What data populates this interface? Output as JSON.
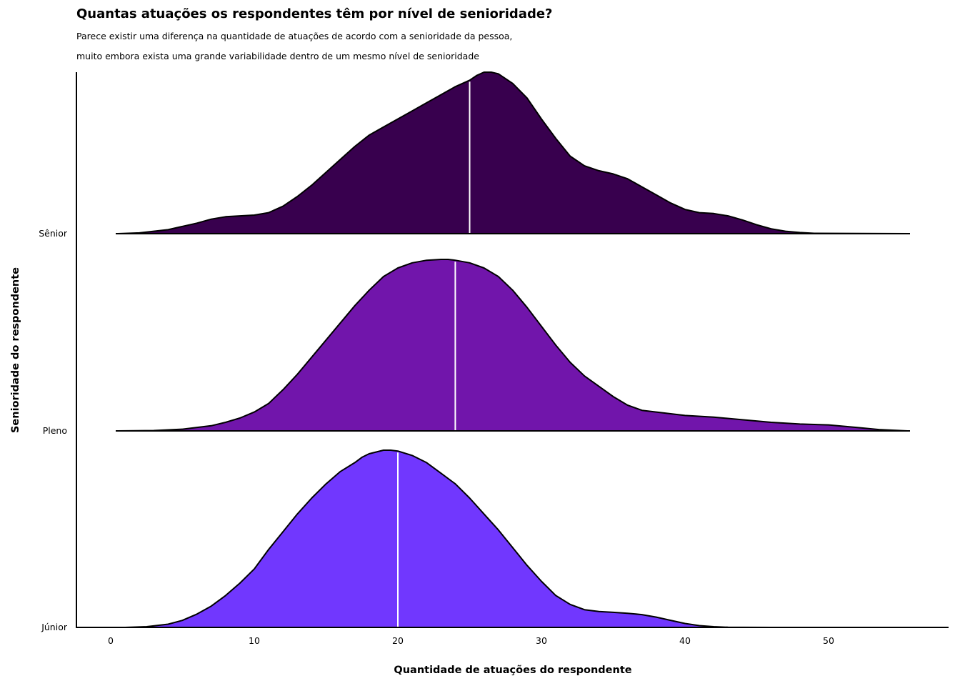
{
  "chart_data": {
    "type": "area",
    "subtype": "ridgeline-density",
    "title": "Quantas atuações os respondentes têm por nível de senioridade?",
    "subtitle_lines": [
      "Parece existir uma diferença na quantidade de atuações de acordo com a senioridade da pessoa,",
      "muito embora exista uma grande variabilidade dentro de um mesmo nível de senioridade"
    ],
    "xlabel": "Quantidade de atuações do respondente",
    "ylabel": "Senioridade do respondente",
    "xlim": [
      -2.5,
      58.5
    ],
    "xticks": [
      0,
      10,
      20,
      30,
      40,
      50
    ],
    "grid": false,
    "legend": "none",
    "categories": [
      "Júnior",
      "Pleno",
      "Sênior"
    ],
    "series": [
      {
        "name": "Júnior",
        "color": "#7137fe",
        "median": 20,
        "density_x": [
          1,
          2.5,
          4,
          5,
          6,
          7,
          8,
          9,
          10,
          11,
          12,
          13,
          14,
          15,
          16,
          17,
          17.5,
          18,
          19,
          19.5,
          20,
          21,
          22,
          23,
          24,
          25,
          26,
          27,
          28,
          29,
          30,
          31,
          32,
          33,
          34,
          35,
          36,
          37,
          38,
          39,
          40,
          41,
          42,
          43,
          44,
          46
        ],
        "density_y": [
          0,
          0.004,
          0.018,
          0.04,
          0.075,
          0.12,
          0.18,
          0.25,
          0.33,
          0.44,
          0.54,
          0.64,
          0.73,
          0.81,
          0.88,
          0.93,
          0.96,
          0.98,
          1.0,
          1.0,
          0.995,
          0.97,
          0.93,
          0.87,
          0.81,
          0.73,
          0.64,
          0.55,
          0.45,
          0.35,
          0.26,
          0.18,
          0.13,
          0.1,
          0.09,
          0.085,
          0.08,
          0.072,
          0.058,
          0.04,
          0.022,
          0.01,
          0.004,
          0.001,
          0.0003,
          0
        ]
      },
      {
        "name": "Pleno",
        "color": "#7115ab",
        "median": 24,
        "density_x": [
          0.5,
          3,
          5,
          7,
          8,
          9,
          10,
          11,
          12,
          13,
          14,
          15,
          16,
          17,
          18,
          19,
          20,
          21,
          22,
          23,
          23.5,
          24,
          25,
          26,
          27,
          28,
          29,
          30,
          31,
          32,
          33,
          34,
          35,
          36,
          37,
          38,
          40,
          42,
          44,
          46,
          48,
          50,
          52,
          53.5,
          55.5
        ],
        "density_y": [
          0,
          0.002,
          0.01,
          0.03,
          0.05,
          0.075,
          0.11,
          0.16,
          0.24,
          0.33,
          0.43,
          0.53,
          0.63,
          0.73,
          0.82,
          0.9,
          0.95,
          0.98,
          0.995,
          1.0,
          1.0,
          0.995,
          0.98,
          0.95,
          0.9,
          0.82,
          0.72,
          0.61,
          0.5,
          0.4,
          0.32,
          0.26,
          0.2,
          0.15,
          0.12,
          0.11,
          0.09,
          0.08,
          0.065,
          0.05,
          0.04,
          0.035,
          0.02,
          0.008,
          0
        ]
      },
      {
        "name": "Sênior",
        "color": "#38004e",
        "median": 25,
        "density_x": [
          0.5,
          2,
          3,
          4,
          5,
          6,
          7,
          8,
          9,
          10,
          11,
          12,
          13,
          14,
          15,
          16,
          17,
          18,
          19,
          20,
          21,
          22,
          23,
          24,
          25,
          25.5,
          26,
          26.5,
          27,
          28,
          29,
          30,
          31,
          32,
          33,
          34,
          35,
          36,
          37,
          38,
          39,
          40,
          41,
          42,
          43,
          44,
          45,
          46,
          47,
          48,
          49,
          55.5
        ],
        "density_y": [
          0,
          0.005,
          0.015,
          0.025,
          0.045,
          0.065,
          0.09,
          0.105,
          0.11,
          0.115,
          0.13,
          0.17,
          0.23,
          0.3,
          0.38,
          0.46,
          0.54,
          0.61,
          0.66,
          0.71,
          0.76,
          0.81,
          0.86,
          0.91,
          0.95,
          0.98,
          1.0,
          1.0,
          0.99,
          0.93,
          0.84,
          0.71,
          0.59,
          0.48,
          0.42,
          0.39,
          0.37,
          0.34,
          0.29,
          0.24,
          0.19,
          0.15,
          0.13,
          0.125,
          0.11,
          0.085,
          0.055,
          0.03,
          0.015,
          0.007,
          0.002,
          0
        ]
      }
    ]
  }
}
